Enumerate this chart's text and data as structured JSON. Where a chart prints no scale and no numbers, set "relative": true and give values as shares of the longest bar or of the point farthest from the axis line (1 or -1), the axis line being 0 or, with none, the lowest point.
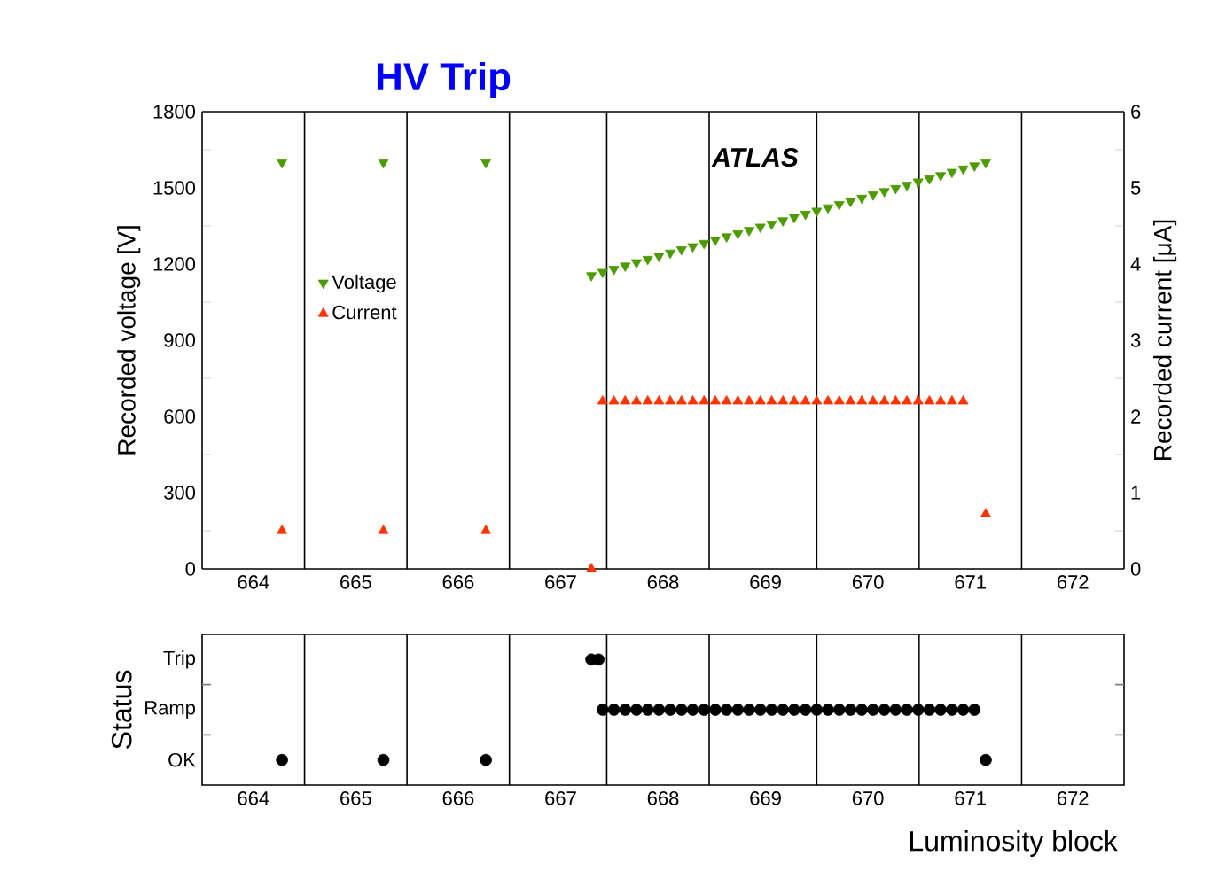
{
  "chart_data": [
    {
      "type": "scatter",
      "title": "HV Trip",
      "ylabel": "Recorded voltage [V]",
      "y2label": "Recorded current [μA]",
      "annotations": [
        "ATLAS"
      ],
      "xlim": [
        663.5,
        672.5
      ],
      "xticks": [
        664,
        665,
        666,
        667,
        668,
        669,
        670,
        671,
        672
      ],
      "ylim": [
        0,
        1800
      ],
      "yticks": [
        0,
        {
          "value": 150,
          "label": null
        },
        300,
        {
          "value": 450,
          "label": null
        },
        600,
        {
          "value": 750,
          "label": null
        },
        900,
        {
          "value": 1050,
          "label": null
        },
        1200,
        {
          "value": 1350,
          "label": null
        },
        1500,
        {
          "value": 1650,
          "label": null
        },
        1800
      ],
      "y2lim": [
        0,
        6
      ],
      "y2ticks": [
        0,
        {
          "value": 0.5,
          "label": null
        },
        1,
        {
          "value": 1.5,
          "label": null
        },
        2,
        {
          "value": 2.5,
          "label": null
        },
        3,
        {
          "value": 3.5,
          "label": null
        },
        4,
        {
          "value": 4.5,
          "label": null
        },
        5,
        {
          "value": 5.5,
          "label": null
        },
        6
      ],
      "legend": "left",
      "ref_lines": [
        {
          "axis": "x",
          "value": 664.5,
          "color": "#000000"
        },
        {
          "axis": "x",
          "value": 665.5,
          "color": "#000000"
        },
        {
          "axis": "x",
          "value": 666.5,
          "color": "#000000"
        },
        {
          "axis": "x",
          "value": 667.45,
          "color": "#000000"
        },
        {
          "axis": "x",
          "value": 668.45,
          "color": "#000000"
        },
        {
          "axis": "x",
          "value": 669.5,
          "color": "#000000"
        },
        {
          "axis": "x",
          "value": 670.5,
          "color": "#000000"
        },
        {
          "axis": "x",
          "value": 671.5,
          "color": "#000000"
        }
      ],
      "series": [
        {
          "name": "Voltage",
          "color": "#4c9c00",
          "marker": "triangle_down",
          "axis": "y",
          "x": [
            664.28,
            665.27,
            666.27,
            667.3,
            667.41,
            667.52,
            667.63,
            667.74,
            667.85,
            667.96,
            668.07,
            668.18,
            668.29,
            668.4,
            668.51,
            668.62,
            668.73,
            668.84,
            668.95,
            669.06,
            669.17,
            669.28,
            669.39,
            669.5,
            669.61,
            669.72,
            669.83,
            669.94,
            670.05,
            670.16,
            670.27,
            670.38,
            670.49,
            670.6,
            670.71,
            670.82,
            670.93,
            671.04,
            671.15
          ],
          "values": [
            1600,
            1600,
            1600,
            1155,
            1168,
            1180,
            1193,
            1206,
            1219,
            1231,
            1244,
            1257,
            1269,
            1282,
            1295,
            1308,
            1320,
            1333,
            1346,
            1358,
            1371,
            1384,
            1397,
            1409,
            1422,
            1435,
            1447,
            1460,
            1473,
            1486,
            1498,
            1511,
            1524,
            1536,
            1549,
            1562,
            1575,
            1587,
            1600
          ]
        },
        {
          "name": "Current",
          "color": "#ff3300",
          "marker": "triangle",
          "axis": "y2",
          "x": [
            664.28,
            665.27,
            666.27,
            667.3,
            667.41,
            667.52,
            667.63,
            667.74,
            667.85,
            667.96,
            668.07,
            668.18,
            668.29,
            668.4,
            668.51,
            668.62,
            668.73,
            668.84,
            668.95,
            669.06,
            669.17,
            669.28,
            669.39,
            669.5,
            669.61,
            669.72,
            669.83,
            669.94,
            670.05,
            670.16,
            670.27,
            670.38,
            670.49,
            670.6,
            670.71,
            670.82,
            670.93,
            671.15
          ],
          "values": [
            0.5,
            0.5,
            0.5,
            0,
            2.2,
            2.2,
            2.2,
            2.2,
            2.2,
            2.2,
            2.2,
            2.2,
            2.2,
            2.2,
            2.2,
            2.2,
            2.2,
            2.2,
            2.2,
            2.2,
            2.2,
            2.2,
            2.2,
            2.2,
            2.2,
            2.2,
            2.2,
            2.2,
            2.2,
            2.2,
            2.2,
            2.2,
            2.2,
            2.2,
            2.2,
            2.2,
            2.2,
            0.72
          ]
        }
      ]
    },
    {
      "type": "scatter",
      "ylabel": "Status",
      "xlabel": "Luminosity block",
      "xlim": [
        663.5,
        672.5
      ],
      "xticks": [
        664,
        665,
        666,
        667,
        668,
        669,
        670,
        671,
        672
      ],
      "relative": true,
      "y_categories": [
        "Trip",
        "Ramp",
        "OK"
      ],
      "ref_lines": [
        {
          "axis": "x",
          "value": 664.5,
          "color": "#000000"
        },
        {
          "axis": "x",
          "value": 665.5,
          "color": "#000000"
        },
        {
          "axis": "x",
          "value": 666.5,
          "color": "#000000"
        },
        {
          "axis": "x",
          "value": 667.45,
          "color": "#000000"
        },
        {
          "axis": "x",
          "value": 668.45,
          "color": "#000000"
        },
        {
          "axis": "x",
          "value": 669.5,
          "color": "#000000"
        },
        {
          "axis": "x",
          "value": 670.5,
          "color": "#000000"
        },
        {
          "axis": "x",
          "value": 671.5,
          "color": "#000000"
        }
      ],
      "series": [
        {
          "color": "#000000",
          "marker": "circle",
          "x": [
            664.28,
            665.27,
            666.27,
            667.3,
            667.37,
            667.41,
            667.52,
            667.63,
            667.74,
            667.85,
            667.96,
            668.07,
            668.18,
            668.29,
            668.4,
            668.51,
            668.62,
            668.73,
            668.84,
            668.95,
            669.06,
            669.17,
            669.28,
            669.39,
            669.5,
            669.61,
            669.72,
            669.83,
            669.94,
            670.05,
            670.16,
            670.27,
            670.38,
            670.49,
            670.6,
            670.71,
            670.82,
            670.93,
            671.04,
            671.15
          ],
          "values": [
            0,
            0,
            0,
            1,
            1,
            0.5,
            0.5,
            0.5,
            0.5,
            0.5,
            0.5,
            0.5,
            0.5,
            0.5,
            0.5,
            0.5,
            0.5,
            0.5,
            0.5,
            0.5,
            0.5,
            0.5,
            0.5,
            0.5,
            0.5,
            0.5,
            0.5,
            0.5,
            0.5,
            0.5,
            0.5,
            0.5,
            0.5,
            0.5,
            0.5,
            0.5,
            0.5,
            0.5,
            0.5,
            0
          ]
        }
      ]
    }
  ]
}
